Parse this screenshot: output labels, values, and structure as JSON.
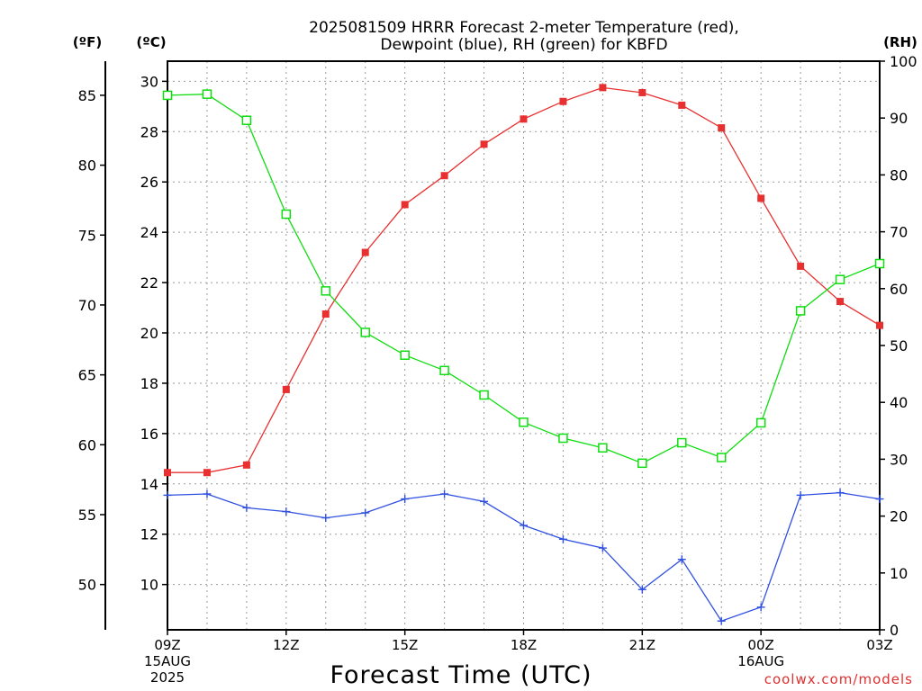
{
  "chart_data": {
    "type": "line",
    "title_line1": "2025081509 HRRR Forecast 2-meter Temperature (red),",
    "title_line2": "Dewpoint (blue), RH (green) for KBFD",
    "left_axis_f_label": "(ºF)",
    "left_axis_c_label": "(ºC)",
    "right_axis_label": "(RH)",
    "xlabel": "Forecast Time (UTC)",
    "watermark": "coolwx.com/models",
    "x_hours": [
      0,
      1,
      2,
      3,
      4,
      5,
      6,
      7,
      8,
      9,
      10,
      11,
      12,
      13,
      14,
      15,
      16,
      17,
      18
    ],
    "x_ticks": [
      {
        "hour": 0,
        "lines": [
          "09Z",
          "15AUG",
          "2025"
        ]
      },
      {
        "hour": 3,
        "lines": [
          "12Z"
        ]
      },
      {
        "hour": 6,
        "lines": [
          "15Z"
        ]
      },
      {
        "hour": 9,
        "lines": [
          "18Z"
        ]
      },
      {
        "hour": 12,
        "lines": [
          "21Z"
        ]
      },
      {
        "hour": 15,
        "lines": [
          "00Z",
          "16AUG"
        ]
      },
      {
        "hour": 18,
        "lines": [
          "03Z"
        ]
      }
    ],
    "celsius_axis": {
      "min": 8.2,
      "max": 30.8,
      "ticks": [
        10,
        12,
        14,
        16,
        18,
        20,
        22,
        24,
        26,
        28,
        30
      ]
    },
    "fahrenheit_ticks": [
      50,
      55,
      60,
      65,
      70,
      75,
      80,
      85
    ],
    "rh_axis": {
      "min": 0,
      "max": 100,
      "ticks": [
        0,
        10,
        20,
        30,
        40,
        50,
        60,
        70,
        80,
        90,
        100
      ]
    },
    "grid": true,
    "series": [
      {
        "name": "Temperature",
        "axis": "celsius",
        "color": "#e83030",
        "marker": "filled-square",
        "values": [
          14.45,
          14.45,
          14.75,
          17.75,
          20.75,
          23.2,
          25.1,
          26.25,
          27.5,
          28.5,
          29.2,
          29.75,
          29.55,
          29.05,
          28.15,
          25.35,
          22.65,
          21.25,
          20.3
        ]
      },
      {
        "name": "Dewpoint",
        "axis": "celsius",
        "color": "#3050e0",
        "marker": "plus",
        "values": [
          13.55,
          13.6,
          13.05,
          12.9,
          12.65,
          12.85,
          13.4,
          13.6,
          13.3,
          12.35,
          11.8,
          11.45,
          9.8,
          11.0,
          8.55,
          9.1,
          13.55,
          13.65,
          13.4
        ]
      },
      {
        "name": "RH",
        "axis": "rh",
        "color": "#10dd10",
        "marker": "open-square",
        "values": [
          94.0,
          94.2,
          89.6,
          73.1,
          59.6,
          52.3,
          48.3,
          45.6,
          41.3,
          36.5,
          33.7,
          32.0,
          29.3,
          32.9,
          30.3,
          36.4,
          56.1,
          61.6,
          64.4
        ]
      }
    ]
  }
}
